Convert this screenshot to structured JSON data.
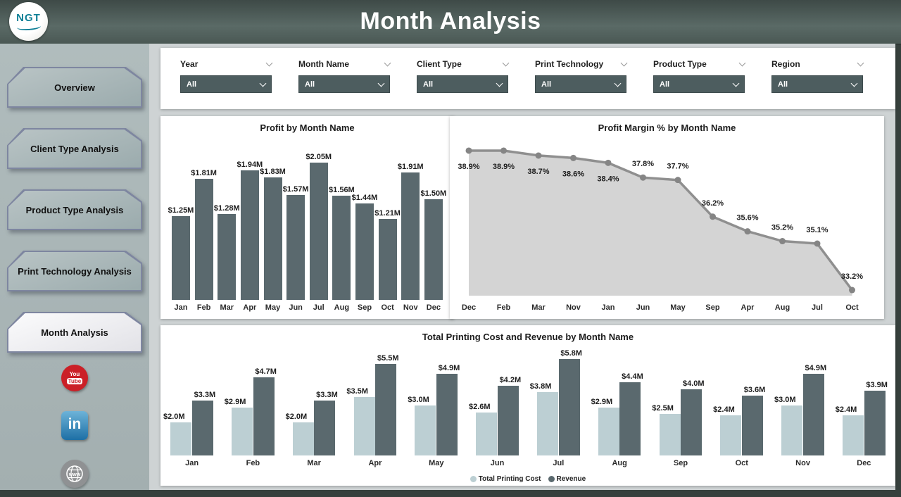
{
  "header": {
    "title": "Month Analysis",
    "logo_text": "NGT"
  },
  "sidebar": {
    "items": [
      {
        "label": "Overview",
        "active": false
      },
      {
        "label": "Client Type Analysis",
        "active": false
      },
      {
        "label": "Product Type Analysis",
        "active": false
      },
      {
        "label": "Print Technology Analysis",
        "active": false
      },
      {
        "label": "Month Analysis",
        "active": true
      }
    ],
    "social": {
      "youtube_line1": "You",
      "youtube_line2": "Tube",
      "linkedin_text": "in",
      "website_text": "www"
    }
  },
  "filters": [
    {
      "label": "Year",
      "value": "All"
    },
    {
      "label": "Month Name",
      "value": "All"
    },
    {
      "label": "Client Type",
      "value": "All"
    },
    {
      "label": "Print Technology",
      "value": "All"
    },
    {
      "label": "Product Type",
      "value": "All"
    },
    {
      "label": "Region",
      "value": "All"
    }
  ],
  "colors": {
    "page_bg": "#ced3d4",
    "dropdown_bg": "#4d5d5f",
    "bar_dark": "#5a696e",
    "bar_light": "#bccfd3",
    "area_fill": "#d4d4d4",
    "area_line": "#8f8f8f",
    "youtube_red": "#cb2027",
    "linkedin_blue": "#2d7fb5"
  },
  "chart_data": [
    {
      "id": "profit_by_month",
      "type": "bar",
      "title": "Profit by Month Name",
      "categories": [
        "Jan",
        "Feb",
        "Mar",
        "Apr",
        "May",
        "Jun",
        "Jul",
        "Aug",
        "Sep",
        "Oct",
        "Nov",
        "Dec"
      ],
      "values": [
        1.25,
        1.81,
        1.28,
        1.94,
        1.83,
        1.57,
        2.05,
        1.56,
        1.44,
        1.21,
        1.91,
        1.5
      ],
      "labels": [
        "$1.25M",
        "$1.81M",
        "$1.28M",
        "$1.94M",
        "$1.83M",
        "$1.57M",
        "$2.05M",
        "$1.56M",
        "$1.44M",
        "$1.21M",
        "$1.91M",
        "$1.50M"
      ],
      "xlabel": "",
      "ylabel": "Profit",
      "ylim": [
        0,
        2.25
      ],
      "grid": false,
      "legend": false
    },
    {
      "id": "profit_margin_by_month",
      "type": "area",
      "title": "Profit Margin % by Month Name",
      "categories": [
        "Dec",
        "Feb",
        "Mar",
        "Nov",
        "Jan",
        "Jun",
        "May",
        "Sep",
        "Apr",
        "Aug",
        "Jul",
        "Oct"
      ],
      "values": [
        38.9,
        38.9,
        38.7,
        38.6,
        38.4,
        37.8,
        37.7,
        36.2,
        35.6,
        35.2,
        35.1,
        33.2
      ],
      "labels": [
        "38.9%",
        "38.9%",
        "38.7%",
        "38.6%",
        "38.4%",
        "37.8%",
        "37.7%",
        "36.2%",
        "35.6%",
        "35.2%",
        "35.1%",
        "33.2%"
      ],
      "xlabel": "",
      "ylabel": "Profit Margin %",
      "ylim": [
        32.9,
        40.2
      ],
      "grid": false,
      "legend": false
    },
    {
      "id": "cost_and_revenue_by_month",
      "type": "bar",
      "title": "Total Printing Cost and Revenue by Month Name",
      "categories": [
        "Jan",
        "Feb",
        "Mar",
        "Apr",
        "May",
        "Jun",
        "Jul",
        "Aug",
        "Sep",
        "Oct",
        "Nov",
        "Dec"
      ],
      "series": [
        {
          "name": "Total Printing Cost",
          "color": "#bccfd3",
          "values": [
            2.0,
            2.9,
            2.0,
            3.5,
            3.0,
            2.6,
            3.8,
            2.9,
            2.5,
            2.4,
            3.0,
            2.4
          ],
          "labels": [
            "$2.0M",
            "$2.9M",
            "$2.0M",
            "$3.5M",
            "$3.0M",
            "$2.6M",
            "$3.8M",
            "$2.9M",
            "$2.5M",
            "$2.4M",
            "$3.0M",
            "$2.4M"
          ]
        },
        {
          "name": "Revenue",
          "color": "#5a696e",
          "values": [
            3.3,
            4.7,
            3.3,
            5.5,
            4.9,
            4.2,
            5.8,
            4.4,
            4.0,
            3.6,
            4.9,
            3.9
          ],
          "labels": [
            "$3.3M",
            "$4.7M",
            "$3.3M",
            "$5.5M",
            "$4.9M",
            "$4.2M",
            "$5.8M",
            "$4.4M",
            "$4.0M",
            "$3.6M",
            "$4.9M",
            "$3.9M"
          ]
        }
      ],
      "legend_position": "bottom",
      "ylim": [
        0,
        6.3
      ],
      "grid": false
    }
  ]
}
